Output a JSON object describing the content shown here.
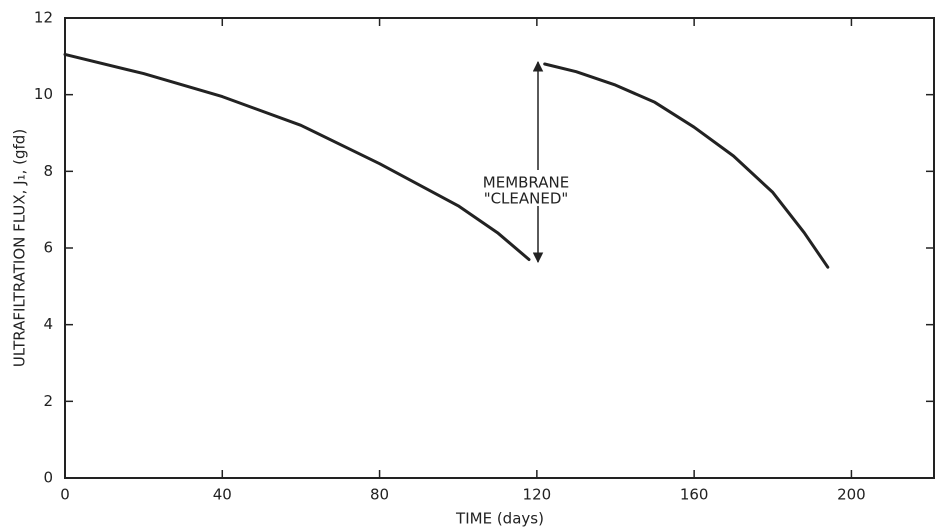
{
  "chart_data": {
    "type": "line",
    "x_label": "TIME (days)",
    "y_label": "ULTRAFILTRATION FLUX, J₁, (gfd)",
    "annotations": [
      "MEMBRANE",
      "\"CLEANED\""
    ],
    "x": [
      0,
      20,
      40,
      60,
      80,
      100,
      110,
      118,
      120,
      122,
      130,
      140,
      150,
      160,
      170,
      180,
      188,
      194
    ],
    "series": [
      {
        "color": "#222222",
        "values": [
          11.05,
          10.55,
          9.95,
          9.2,
          8.2,
          7.1,
          6.4,
          5.7,
          null,
          10.8,
          10.6,
          10.25,
          9.8,
          9.15,
          8.4,
          7.45,
          6.4,
          5.5
        ]
      }
    ],
    "xlim": [
      0,
      221
    ],
    "ylim": [
      0,
      12
    ],
    "xticks": [
      0,
      40,
      80,
      120,
      160,
      200
    ],
    "yticks": [
      0,
      2,
      4,
      6,
      8,
      10,
      12
    ],
    "grid": false
  }
}
